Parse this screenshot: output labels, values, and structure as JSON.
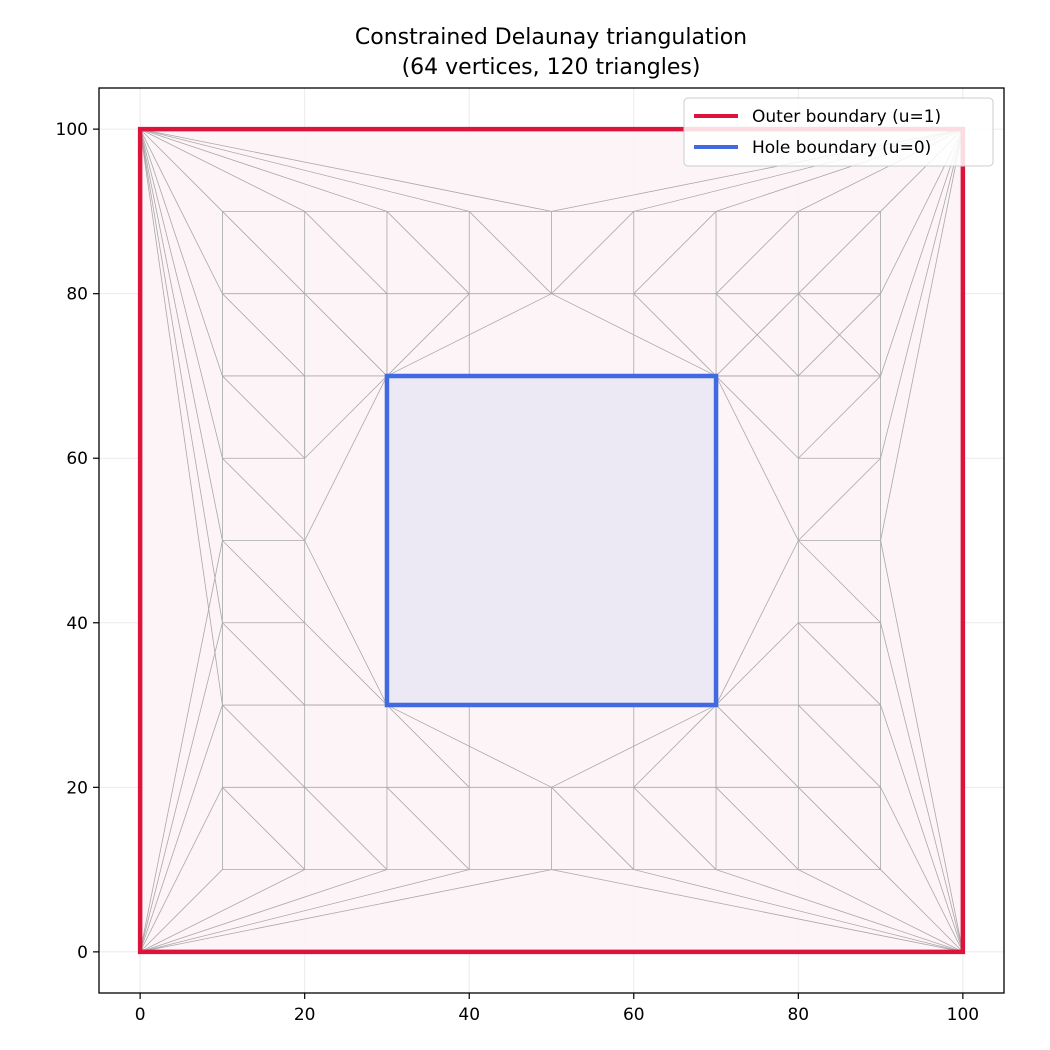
{
  "chart_data": {
    "type": "triangulation",
    "title": "Constrained Delaunay triangulation",
    "subtitle": "(64 vertices, 120 triangles)",
    "xlabel": "",
    "ylabel": "",
    "xlim": [
      -5,
      105
    ],
    "ylim": [
      -5,
      105
    ],
    "xticks": [
      0,
      20,
      40,
      60,
      80,
      100
    ],
    "yticks": [
      0,
      20,
      40,
      60,
      80,
      100
    ],
    "grid": true,
    "legend_position": "top-right",
    "outer_boundary": {
      "name": "Outer boundary (u=1)",
      "color": "#dc143c",
      "fill": "#fdf3f6",
      "points": [
        [
          0,
          0
        ],
        [
          100,
          0
        ],
        [
          100,
          100
        ],
        [
          0,
          100
        ]
      ]
    },
    "hole_boundary": {
      "name": "Hole boundary (u=0)",
      "color": "#4169e1",
      "fill": "#ece8f4",
      "points": [
        [
          30,
          30
        ],
        [
          70,
          30
        ],
        [
          70,
          70
        ],
        [
          30,
          70
        ]
      ]
    },
    "mesh_edge_color": "#a8a8a8",
    "mesh_edges": [
      [
        [
          0,
          100
        ],
        [
          10,
          90
        ]
      ],
      [
        [
          0,
          100
        ],
        [
          10,
          80
        ]
      ],
      [
        [
          0,
          100
        ],
        [
          10,
          70
        ]
      ],
      [
        [
          0,
          100
        ],
        [
          10,
          60
        ]
      ],
      [
        [
          0,
          100
        ],
        [
          10,
          50
        ]
      ],
      [
        [
          0,
          100
        ],
        [
          10,
          40
        ]
      ],
      [
        [
          0,
          100
        ],
        [
          10,
          30
        ]
      ],
      [
        [
          0,
          100
        ],
        [
          20,
          90
        ]
      ],
      [
        [
          0,
          100
        ],
        [
          30,
          90
        ]
      ],
      [
        [
          0,
          100
        ],
        [
          40,
          90
        ]
      ],
      [
        [
          0,
          100
        ],
        [
          50,
          90
        ]
      ],
      [
        [
          0,
          0
        ],
        [
          10,
          10
        ]
      ],
      [
        [
          0,
          0
        ],
        [
          10,
          20
        ]
      ],
      [
        [
          0,
          0
        ],
        [
          10,
          30
        ]
      ],
      [
        [
          0,
          0
        ],
        [
          10,
          40
        ]
      ],
      [
        [
          0,
          0
        ],
        [
          10,
          50
        ]
      ],
      [
        [
          0,
          0
        ],
        [
          20,
          10
        ]
      ],
      [
        [
          0,
          0
        ],
        [
          30,
          10
        ]
      ],
      [
        [
          0,
          0
        ],
        [
          40,
          10
        ]
      ],
      [
        [
          0,
          0
        ],
        [
          50,
          10
        ]
      ],
      [
        [
          100,
          100
        ],
        [
          90,
          90
        ]
      ],
      [
        [
          100,
          100
        ],
        [
          90,
          80
        ]
      ],
      [
        [
          100,
          100
        ],
        [
          90,
          70
        ]
      ],
      [
        [
          100,
          100
        ],
        [
          90,
          60
        ]
      ],
      [
        [
          100,
          100
        ],
        [
          90,
          50
        ]
      ],
      [
        [
          100,
          100
        ],
        [
          80,
          90
        ]
      ],
      [
        [
          100,
          100
        ],
        [
          70,
          90
        ]
      ],
      [
        [
          100,
          100
        ],
        [
          60,
          90
        ]
      ],
      [
        [
          100,
          100
        ],
        [
          50,
          90
        ]
      ],
      [
        [
          100,
          0
        ],
        [
          90,
          10
        ]
      ],
      [
        [
          100,
          0
        ],
        [
          90,
          20
        ]
      ],
      [
        [
          100,
          0
        ],
        [
          90,
          30
        ]
      ],
      [
        [
          100,
          0
        ],
        [
          90,
          40
        ]
      ],
      [
        [
          100,
          0
        ],
        [
          90,
          50
        ]
      ],
      [
        [
          100,
          0
        ],
        [
          80,
          10
        ]
      ],
      [
        [
          100,
          0
        ],
        [
          70,
          10
        ]
      ],
      [
        [
          100,
          0
        ],
        [
          60,
          10
        ]
      ],
      [
        [
          100,
          0
        ],
        [
          50,
          10
        ]
      ],
      [
        [
          10,
          10
        ],
        [
          10,
          90
        ]
      ],
      [
        [
          20,
          10
        ],
        [
          20,
          90
        ]
      ],
      [
        [
          30,
          10
        ],
        [
          30,
          30
        ]
      ],
      [
        [
          30,
          70
        ],
        [
          30,
          90
        ]
      ],
      [
        [
          40,
          10
        ],
        [
          40,
          30
        ]
      ],
      [
        [
          40,
          70
        ],
        [
          40,
          90
        ]
      ],
      [
        [
          50,
          10
        ],
        [
          50,
          20
        ]
      ],
      [
        [
          50,
          80
        ],
        [
          50,
          90
        ]
      ],
      [
        [
          60,
          10
        ],
        [
          60,
          30
        ]
      ],
      [
        [
          60,
          70
        ],
        [
          60,
          90
        ]
      ],
      [
        [
          70,
          10
        ],
        [
          70,
          30
        ]
      ],
      [
        [
          70,
          70
        ],
        [
          70,
          90
        ]
      ],
      [
        [
          80,
          10
        ],
        [
          80,
          90
        ]
      ],
      [
        [
          90,
          10
        ],
        [
          90,
          90
        ]
      ],
      [
        [
          10,
          10
        ],
        [
          90,
          10
        ]
      ],
      [
        [
          10,
          20
        ],
        [
          90,
          20
        ]
      ],
      [
        [
          10,
          30
        ],
        [
          30,
          30
        ]
      ],
      [
        [
          70,
          30
        ],
        [
          90,
          30
        ]
      ],
      [
        [
          10,
          40
        ],
        [
          20,
          40
        ]
      ],
      [
        [
          80,
          40
        ],
        [
          90,
          40
        ]
      ],
      [
        [
          10,
          50
        ],
        [
          20,
          50
        ]
      ],
      [
        [
          80,
          50
        ],
        [
          90,
          50
        ]
      ],
      [
        [
          10,
          60
        ],
        [
          20,
          60
        ]
      ],
      [
        [
          80,
          60
        ],
        [
          90,
          60
        ]
      ],
      [
        [
          10,
          70
        ],
        [
          30,
          70
        ]
      ],
      [
        [
          70,
          70
        ],
        [
          90,
          70
        ]
      ],
      [
        [
          10,
          80
        ],
        [
          90,
          80
        ]
      ],
      [
        [
          10,
          90
        ],
        [
          90,
          90
        ]
      ],
      [
        [
          10,
          90
        ],
        [
          20,
          80
        ]
      ],
      [
        [
          20,
          90
        ],
        [
          30,
          80
        ]
      ],
      [
        [
          30,
          90
        ],
        [
          40,
          80
        ]
      ],
      [
        [
          40,
          90
        ],
        [
          50,
          80
        ]
      ],
      [
        [
          60,
          90
        ],
        [
          50,
          80
        ]
      ],
      [
        [
          70,
          90
        ],
        [
          60,
          80
        ]
      ],
      [
        [
          80,
          90
        ],
        [
          70,
          80
        ]
      ],
      [
        [
          90,
          90
        ],
        [
          80,
          80
        ]
      ],
      [
        [
          10,
          80
        ],
        [
          20,
          70
        ]
      ],
      [
        [
          20,
          80
        ],
        [
          30,
          70
        ]
      ],
      [
        [
          30,
          80
        ],
        [
          30,
          70
        ]
      ],
      [
        [
          40,
          80
        ],
        [
          30,
          70
        ]
      ],
      [
        [
          50,
          80
        ],
        [
          30,
          70
        ]
      ],
      [
        [
          50,
          80
        ],
        [
          70,
          70
        ]
      ],
      [
        [
          60,
          80
        ],
        [
          70,
          70
        ]
      ],
      [
        [
          70,
          80
        ],
        [
          80,
          70
        ]
      ],
      [
        [
          80,
          80
        ],
        [
          90,
          70
        ]
      ],
      [
        [
          10,
          70
        ],
        [
          20,
          60
        ]
      ],
      [
        [
          20,
          70
        ],
        [
          20,
          60
        ]
      ],
      [
        [
          20,
          60
        ],
        [
          30,
          70
        ]
      ],
      [
        [
          20,
          50
        ],
        [
          30,
          70
        ]
      ],
      [
        [
          20,
          50
        ],
        [
          30,
          30
        ]
      ],
      [
        [
          20,
          40
        ],
        [
          30,
          30
        ]
      ],
      [
        [
          20,
          30
        ],
        [
          30,
          30
        ]
      ],
      [
        [
          10,
          60
        ],
        [
          20,
          50
        ]
      ],
      [
        [
          10,
          50
        ],
        [
          20,
          40
        ]
      ],
      [
        [
          10,
          40
        ],
        [
          20,
          30
        ]
      ],
      [
        [
          10,
          30
        ],
        [
          20,
          20
        ]
      ],
      [
        [
          10,
          20
        ],
        [
          20,
          10
        ]
      ],
      [
        [
          20,
          20
        ],
        [
          30,
          10
        ]
      ],
      [
        [
          30,
          20
        ],
        [
          40,
          10
        ]
      ],
      [
        [
          30,
          30
        ],
        [
          40,
          20
        ]
      ],
      [
        [
          30,
          30
        ],
        [
          50,
          20
        ]
      ],
      [
        [
          50,
          20
        ],
        [
          70,
          30
        ]
      ],
      [
        [
          50,
          20
        ],
        [
          60,
          10
        ]
      ],
      [
        [
          60,
          20
        ],
        [
          70,
          10
        ]
      ],
      [
        [
          70,
          20
        ],
        [
          80,
          10
        ]
      ],
      [
        [
          80,
          20
        ],
        [
          90,
          10
        ]
      ],
      [
        [
          70,
          30
        ],
        [
          60,
          20
        ]
      ],
      [
        [
          70,
          30
        ],
        [
          70,
          20
        ]
      ],
      [
        [
          70,
          30
        ],
        [
          80,
          20
        ]
      ],
      [
        [
          80,
          30
        ],
        [
          90,
          20
        ]
      ],
      [
        [
          70,
          30
        ],
        [
          80,
          40
        ]
      ],
      [
        [
          70,
          30
        ],
        [
          80,
          50
        ]
      ],
      [
        [
          80,
          40
        ],
        [
          90,
          30
        ]
      ],
      [
        [
          80,
          50
        ],
        [
          90,
          40
        ]
      ],
      [
        [
          80,
          50
        ],
        [
          90,
          60
        ]
      ],
      [
        [
          80,
          60
        ],
        [
          90,
          70
        ]
      ],
      [
        [
          70,
          70
        ],
        [
          80,
          50
        ]
      ],
      [
        [
          70,
          70
        ],
        [
          80,
          60
        ]
      ],
      [
        [
          70,
          70
        ],
        [
          80,
          70
        ]
      ],
      [
        [
          70,
          70
        ],
        [
          80,
          80
        ]
      ],
      [
        [
          80,
          70
        ],
        [
          90,
          80
        ]
      ]
    ]
  }
}
